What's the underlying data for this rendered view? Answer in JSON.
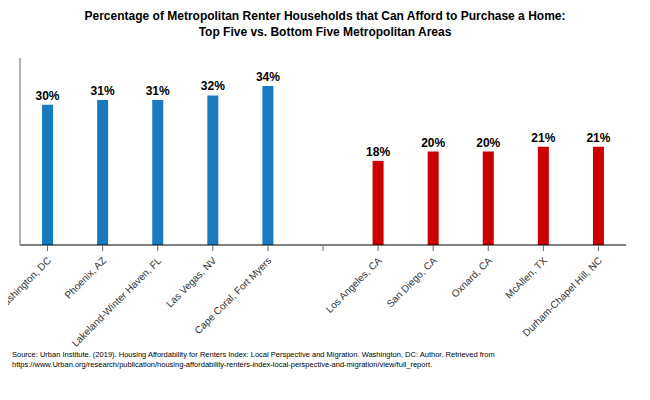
{
  "chart_data": {
    "type": "bar",
    "title": "Percentage of Metropolitan Renter Households that Can Afford to Purchase a Home:\nTop Five vs. Bottom Five Metropolitan Areas",
    "categories": [
      "Washington, DC",
      "Phoenix, AZ",
      "Lakeland-Winter Haven, FL",
      "Las Vegas, NV",
      "Cape Coral, Fort Myers",
      null,
      "Los Angeles, CA",
      "San Diego, CA",
      "Oxnard, CA",
      "McAllen, TX",
      "Durham-Chapel Hill, NC"
    ],
    "values": [
      30,
      31,
      31,
      32,
      34,
      null,
      18,
      20,
      20,
      21,
      21
    ],
    "value_labels": [
      "30%",
      "31%",
      "31%",
      "32%",
      "34%",
      null,
      "18%",
      "20%",
      "20%",
      "21%",
      "21%"
    ],
    "colors": [
      "#1a7abf",
      "#1a7abf",
      "#1a7abf",
      "#1a7abf",
      "#1a7abf",
      null,
      "#cc0000",
      "#cc0000",
      "#cc0000",
      "#cc0000",
      "#cc0000"
    ],
    "ylim": [
      0,
      40
    ],
    "data_labels": true,
    "tick_labels": "x",
    "grid": false,
    "annotations": [
      "Source: Urban Institute. (2019). Housing Affordability for Renters Index: Local Perspective and Migration. Washington, DC: Author. Retrieved from\nhttps://www.Urban.org/research/publication/housing-affordability-renters-index-local-perspective-and-migration/view/full_report."
    ]
  }
}
